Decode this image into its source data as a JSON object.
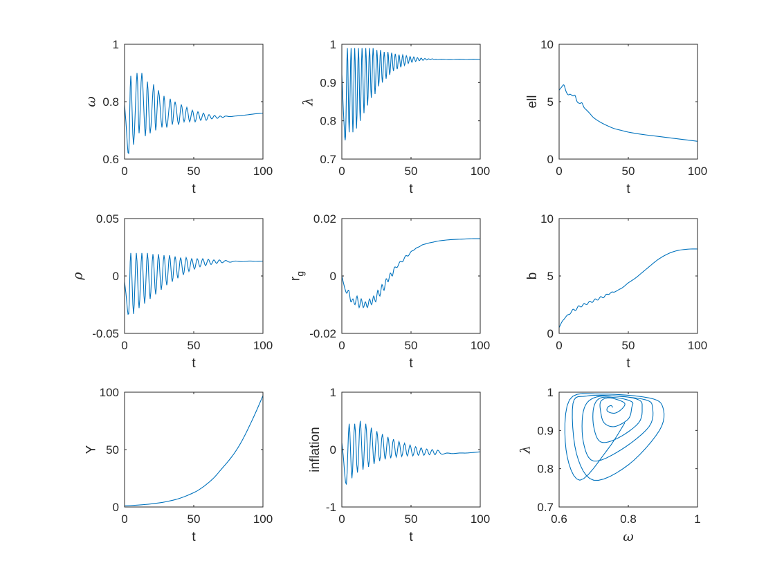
{
  "chart_data": [
    {
      "type": "line",
      "id": "omega",
      "xlabel": "t",
      "ylabel": "ω",
      "ylabel_kind": "greek",
      "xlim": [
        0,
        100
      ],
      "ylim": [
        0.6,
        1
      ],
      "xticks": [
        0,
        50,
        100
      ],
      "xtick_labels": [
        "0",
        "50",
        "100"
      ],
      "yticks": [
        0.6,
        0.8,
        1
      ],
      "ytick_labels": [
        "0.6",
        "0.8",
        "1"
      ],
      "color": "#0072BD",
      "series": [
        {
          "x": [
            0,
            1,
            3,
            4.5,
            6.5,
            9,
            10.5,
            12.5,
            15,
            16.5,
            18.5,
            21,
            22.5,
            24.5,
            27,
            28.5,
            30.5,
            33,
            34.5,
            36.5,
            39,
            41,
            43,
            45,
            47,
            49,
            51,
            53,
            55,
            57,
            59,
            61,
            63,
            65,
            67,
            69,
            71,
            73,
            76,
            80,
            85,
            90,
            95,
            100
          ],
          "y": [
            0.79,
            0.73,
            0.62,
            0.89,
            0.65,
            0.9,
            0.69,
            0.9,
            0.68,
            0.87,
            0.69,
            0.86,
            0.7,
            0.84,
            0.71,
            0.82,
            0.71,
            0.81,
            0.72,
            0.8,
            0.72,
            0.79,
            0.73,
            0.78,
            0.73,
            0.77,
            0.73,
            0.765,
            0.735,
            0.76,
            0.735,
            0.755,
            0.74,
            0.752,
            0.742,
            0.75,
            0.745,
            0.75,
            0.748,
            0.75,
            0.752,
            0.755,
            0.758,
            0.76
          ]
        }
      ]
    },
    {
      "type": "line",
      "id": "lambda",
      "xlabel": "t",
      "ylabel": "λ",
      "ylabel_kind": "greek",
      "xlim": [
        0,
        100
      ],
      "ylim": [
        0.7,
        1
      ],
      "xticks": [
        0,
        50,
        100
      ],
      "xtick_labels": [
        "0",
        "50",
        "100"
      ],
      "yticks": [
        0.7,
        0.8,
        0.9,
        1
      ],
      "ytick_labels": [
        "0.7",
        "0.8",
        "0.9",
        "1"
      ],
      "color": "#0072BD",
      "series": [
        {
          "x": [
            0,
            1.5,
            2.7,
            4,
            5.3,
            6.7,
            8,
            9.3,
            10.6,
            12,
            13.3,
            14.6,
            16,
            17.3,
            18.6,
            20,
            21.3,
            22.6,
            24,
            25.3,
            26.6,
            28,
            29.3,
            30.6,
            32,
            33.3,
            34.6,
            36,
            37.3,
            38.6,
            40,
            41.3,
            42.6,
            44,
            45.3,
            46.6,
            48,
            49.3,
            50.6,
            52,
            53.3,
            54.6,
            56,
            57.3,
            58.6,
            60,
            61.3,
            62.6,
            64,
            65.3,
            66.6,
            68,
            69.3,
            72,
            76,
            80,
            85,
            90,
            95,
            100
          ],
          "y": [
            0.92,
            0.8,
            0.76,
            0.99,
            0.77,
            0.99,
            0.77,
            0.99,
            0.78,
            0.99,
            0.8,
            0.99,
            0.82,
            0.99,
            0.84,
            0.99,
            0.86,
            0.99,
            0.87,
            0.985,
            0.89,
            0.985,
            0.9,
            0.98,
            0.91,
            0.98,
            0.92,
            0.978,
            0.93,
            0.975,
            0.935,
            0.973,
            0.94,
            0.972,
            0.945,
            0.97,
            0.95,
            0.968,
            0.953,
            0.967,
            0.955,
            0.965,
            0.957,
            0.964,
            0.958,
            0.963,
            0.959,
            0.962,
            0.96,
            0.962,
            0.96,
            0.961,
            0.96,
            0.961,
            0.96,
            0.96,
            0.961,
            0.96,
            0.961,
            0.96
          ]
        }
      ]
    },
    {
      "type": "line",
      "id": "ell",
      "xlabel": "t",
      "ylabel": "ell",
      "ylabel_kind": "text",
      "xlim": [
        0,
        100
      ],
      "ylim": [
        0,
        10
      ],
      "xticks": [
        0,
        50,
        100
      ],
      "xtick_labels": [
        "0",
        "50",
        "100"
      ],
      "yticks": [
        0,
        5,
        10
      ],
      "ytick_labels": [
        "0",
        "5",
        "10"
      ],
      "color": "#0072BD",
      "series": [
        {
          "x": [
            0,
            2,
            3.5,
            5,
            6.5,
            8,
            10,
            11.5,
            13,
            15,
            16.5,
            18,
            20,
            22,
            25,
            30,
            35,
            40,
            45,
            50,
            60,
            70,
            80,
            90,
            100
          ],
          "y": [
            6.0,
            6.3,
            6.45,
            5.9,
            5.6,
            5.65,
            5.5,
            5.55,
            5.0,
            4.85,
            4.9,
            4.5,
            4.25,
            4.0,
            3.6,
            3.2,
            2.9,
            2.65,
            2.5,
            2.35,
            2.15,
            2.0,
            1.85,
            1.7,
            1.55
          ]
        }
      ]
    },
    {
      "type": "line",
      "id": "rho",
      "xlabel": "t",
      "ylabel": "ρ",
      "ylabel_kind": "greek",
      "xlim": [
        0,
        100
      ],
      "ylim": [
        -0.05,
        0.05
      ],
      "xticks": [
        0,
        50,
        100
      ],
      "xtick_labels": [
        "0",
        "50",
        "100"
      ],
      "yticks": [
        -0.05,
        0,
        0.05
      ],
      "ytick_labels": [
        "-0.05",
        "0",
        "0.05"
      ],
      "color": "#0072BD",
      "series": [
        {
          "x": [
            0,
            1,
            3,
            4.5,
            6.5,
            8.5,
            10.5,
            12.5,
            14.5,
            16.5,
            18.5,
            20.5,
            22.5,
            24.5,
            26.5,
            28.5,
            30.5,
            32.5,
            34.5,
            36.5,
            38.5,
            40.5,
            42.5,
            44.5,
            46.5,
            48.5,
            50.5,
            52.5,
            54.5,
            56.5,
            58.5,
            60.5,
            62.5,
            64.5,
            66.5,
            68.5,
            70.5,
            73,
            76,
            80,
            85,
            90,
            95,
            100
          ],
          "y": [
            -0.005,
            -0.015,
            -0.033,
            0.02,
            -0.033,
            0.02,
            -0.028,
            0.02,
            -0.024,
            0.02,
            -0.02,
            0.019,
            -0.016,
            0.019,
            -0.012,
            0.018,
            -0.008,
            0.018,
            -0.005,
            0.017,
            -0.002,
            0.016,
            0.001,
            0.016,
            0.004,
            0.015,
            0.006,
            0.015,
            0.008,
            0.015,
            0.009,
            0.0145,
            0.01,
            0.014,
            0.011,
            0.014,
            0.0115,
            0.0135,
            0.012,
            0.013,
            0.0125,
            0.013,
            0.0128,
            0.013
          ]
        }
      ]
    },
    {
      "type": "line",
      "id": "rg",
      "xlabel": "t",
      "ylabel": "r",
      "ylabel_sub": "g",
      "ylabel_kind": "sub",
      "xlim": [
        0,
        100
      ],
      "ylim": [
        -0.02,
        0.02
      ],
      "xticks": [
        0,
        50,
        100
      ],
      "xtick_labels": [
        "0",
        "50",
        "100"
      ],
      "yticks": [
        -0.02,
        0,
        0.02
      ],
      "ytick_labels": [
        "-0.02",
        "0",
        "0.02"
      ],
      "color": "#0072BD",
      "series": [
        {
          "x": [
            0,
            2,
            3.5,
            5,
            6.5,
            8,
            9.5,
            11,
            12.5,
            14,
            15.5,
            17,
            18.5,
            20,
            21.5,
            23,
            24.5,
            26,
            27.5,
            29,
            30.5,
            32,
            33.5,
            35,
            36.5,
            38,
            40,
            42,
            44,
            46,
            48,
            50,
            52,
            54,
            56,
            58,
            60,
            63,
            66,
            70,
            75,
            80,
            85,
            90,
            95,
            100
          ],
          "y": [
            0,
            -0.004,
            -0.006,
            -0.005,
            -0.009,
            -0.008,
            -0.01,
            -0.007,
            -0.011,
            -0.008,
            -0.011,
            -0.009,
            -0.011,
            -0.008,
            -0.01,
            -0.007,
            -0.009,
            -0.005,
            -0.007,
            -0.003,
            -0.005,
            -0.001,
            -0.002,
            0.001,
            0.0,
            0.003,
            0.003,
            0.005,
            0.005,
            0.007,
            0.007,
            0.0085,
            0.009,
            0.0098,
            0.0102,
            0.0108,
            0.0111,
            0.0115,
            0.0118,
            0.0122,
            0.0125,
            0.0127,
            0.0128,
            0.0129,
            0.013,
            0.013
          ]
        }
      ]
    },
    {
      "type": "line",
      "id": "b",
      "xlabel": "t",
      "ylabel": "b",
      "ylabel_kind": "text",
      "xlim": [
        0,
        100
      ],
      "ylim": [
        0,
        10
      ],
      "xticks": [
        0,
        50,
        100
      ],
      "xtick_labels": [
        "0",
        "50",
        "100"
      ],
      "yticks": [
        0,
        5,
        10
      ],
      "ytick_labels": [
        "0",
        "5",
        "10"
      ],
      "color": "#0072BD",
      "series": [
        {
          "x": [
            0,
            2,
            4,
            6,
            8,
            10,
            12,
            14,
            16,
            18,
            20,
            22,
            24,
            26,
            28,
            30,
            32,
            34,
            36,
            38,
            40,
            43,
            46,
            50,
            55,
            60,
            65,
            70,
            75,
            80,
            85,
            90,
            95,
            100
          ],
          "y": [
            0.5,
            1.0,
            1.3,
            1.6,
            1.7,
            2.1,
            2.0,
            2.4,
            2.3,
            2.6,
            2.5,
            2.8,
            2.7,
            3.0,
            2.9,
            3.2,
            3.1,
            3.4,
            3.4,
            3.6,
            3.6,
            3.8,
            4.0,
            4.4,
            4.8,
            5.3,
            5.8,
            6.3,
            6.7,
            7.0,
            7.2,
            7.3,
            7.35,
            7.35
          ]
        }
      ]
    },
    {
      "type": "line",
      "id": "Y",
      "xlabel": "t",
      "ylabel": "Y",
      "ylabel_kind": "text",
      "xlim": [
        0,
        100
      ],
      "ylim": [
        0,
        100
      ],
      "xticks": [
        0,
        50,
        100
      ],
      "xtick_labels": [
        "0",
        "50",
        "100"
      ],
      "yticks": [
        0,
        50,
        100
      ],
      "ytick_labels": [
        "0",
        "50",
        "100"
      ],
      "color": "#0072BD",
      "series": [
        {
          "x": [
            0,
            10,
            20,
            30,
            40,
            50,
            55,
            60,
            65,
            70,
            75,
            80,
            85,
            90,
            95,
            100
          ],
          "y": [
            1,
            1.7,
            2.8,
            4.6,
            7.6,
            12.5,
            16,
            20.5,
            26,
            33,
            40,
            48,
            58,
            70,
            83,
            97
          ]
        }
      ]
    },
    {
      "type": "line",
      "id": "inflation",
      "xlabel": "t",
      "ylabel": "inflation",
      "ylabel_kind": "text",
      "xlim": [
        0,
        100
      ],
      "ylim": [
        -1,
        1
      ],
      "xticks": [
        0,
        50,
        100
      ],
      "xtick_labels": [
        "0",
        "50",
        "100"
      ],
      "yticks": [
        -1,
        0,
        1
      ],
      "ytick_labels": [
        "-1",
        "0",
        "1"
      ],
      "color": "#0072BD",
      "series": [
        {
          "x": [
            0,
            1,
            3.3,
            5.3,
            7.3,
            9.3,
            11.3,
            13.3,
            15.3,
            17.3,
            19.3,
            21.3,
            23.3,
            25.3,
            27.3,
            29.3,
            31.3,
            33.3,
            35.3,
            37.3,
            39.3,
            41.3,
            43.3,
            45.3,
            47.3,
            49.3,
            51.3,
            53.3,
            55.3,
            57.3,
            59.3,
            61.3,
            63.3,
            65.3,
            67.3,
            69.3,
            72,
            76,
            80,
            85,
            90,
            95,
            100
          ],
          "y": [
            0.12,
            -0.1,
            -0.6,
            0.45,
            -0.5,
            0.45,
            -0.4,
            0.5,
            -0.35,
            0.45,
            -0.3,
            0.38,
            -0.25,
            0.32,
            -0.2,
            0.27,
            -0.17,
            0.22,
            -0.15,
            0.18,
            -0.13,
            0.14,
            -0.12,
            0.11,
            -0.11,
            0.08,
            -0.11,
            0.05,
            -0.1,
            0.03,
            -0.1,
            0.01,
            -0.09,
            0.0,
            -0.09,
            -0.01,
            -0.08,
            -0.06,
            -0.07,
            -0.06,
            -0.06,
            -0.05,
            -0.04
          ]
        }
      ]
    },
    {
      "type": "line",
      "id": "phase",
      "xlabel": "ω",
      "xlabel_kind": "greek",
      "ylabel": "λ",
      "ylabel_kind": "greek",
      "xlim": [
        0.6,
        1
      ],
      "ylim": [
        0.7,
        1
      ],
      "xticks": [
        0.6,
        0.8,
        1
      ],
      "xtick_labels": [
        "0.6",
        "0.8",
        "1"
      ],
      "yticks": [
        0.7,
        0.8,
        0.9,
        1
      ],
      "ytick_labels": [
        "0.7",
        "0.8",
        "0.9",
        "1"
      ],
      "color": "#0072BD",
      "spiral": {
        "center": [
          0.74,
          0.96
        ],
        "start": [
          0.79,
          0.92
        ],
        "outer_scale": 1.0,
        "turns": 18
      },
      "series": [
        {
          "x": [
            0.79,
            0.74,
            0.66,
            0.62,
            0.63,
            0.72,
            0.86,
            0.9,
            0.89,
            0.8,
            0.7,
            0.65,
            0.64,
            0.68,
            0.76,
            0.85,
            0.87,
            0.86,
            0.78,
            0.7,
            0.67,
            0.67,
            0.7,
            0.77,
            0.83,
            0.84,
            0.83,
            0.77,
            0.72,
            0.7,
            0.7,
            0.72,
            0.77,
            0.81,
            0.81,
            0.8,
            0.76,
            0.73,
            0.72,
            0.72,
            0.74,
            0.77,
            0.79,
            0.78,
            0.76,
            0.74,
            0.74,
            0.75,
            0.755
          ],
          "y": [
            0.92,
            0.85,
            0.77,
            0.85,
            0.98,
            0.995,
            0.985,
            0.96,
            0.9,
            0.81,
            0.77,
            0.84,
            0.97,
            0.99,
            0.99,
            0.98,
            0.96,
            0.91,
            0.85,
            0.82,
            0.87,
            0.95,
            0.985,
            0.99,
            0.98,
            0.96,
            0.92,
            0.88,
            0.87,
            0.91,
            0.96,
            0.985,
            0.985,
            0.975,
            0.96,
            0.93,
            0.91,
            0.92,
            0.95,
            0.975,
            0.985,
            0.98,
            0.97,
            0.955,
            0.945,
            0.95,
            0.96,
            0.965,
            0.96
          ]
        }
      ]
    }
  ]
}
